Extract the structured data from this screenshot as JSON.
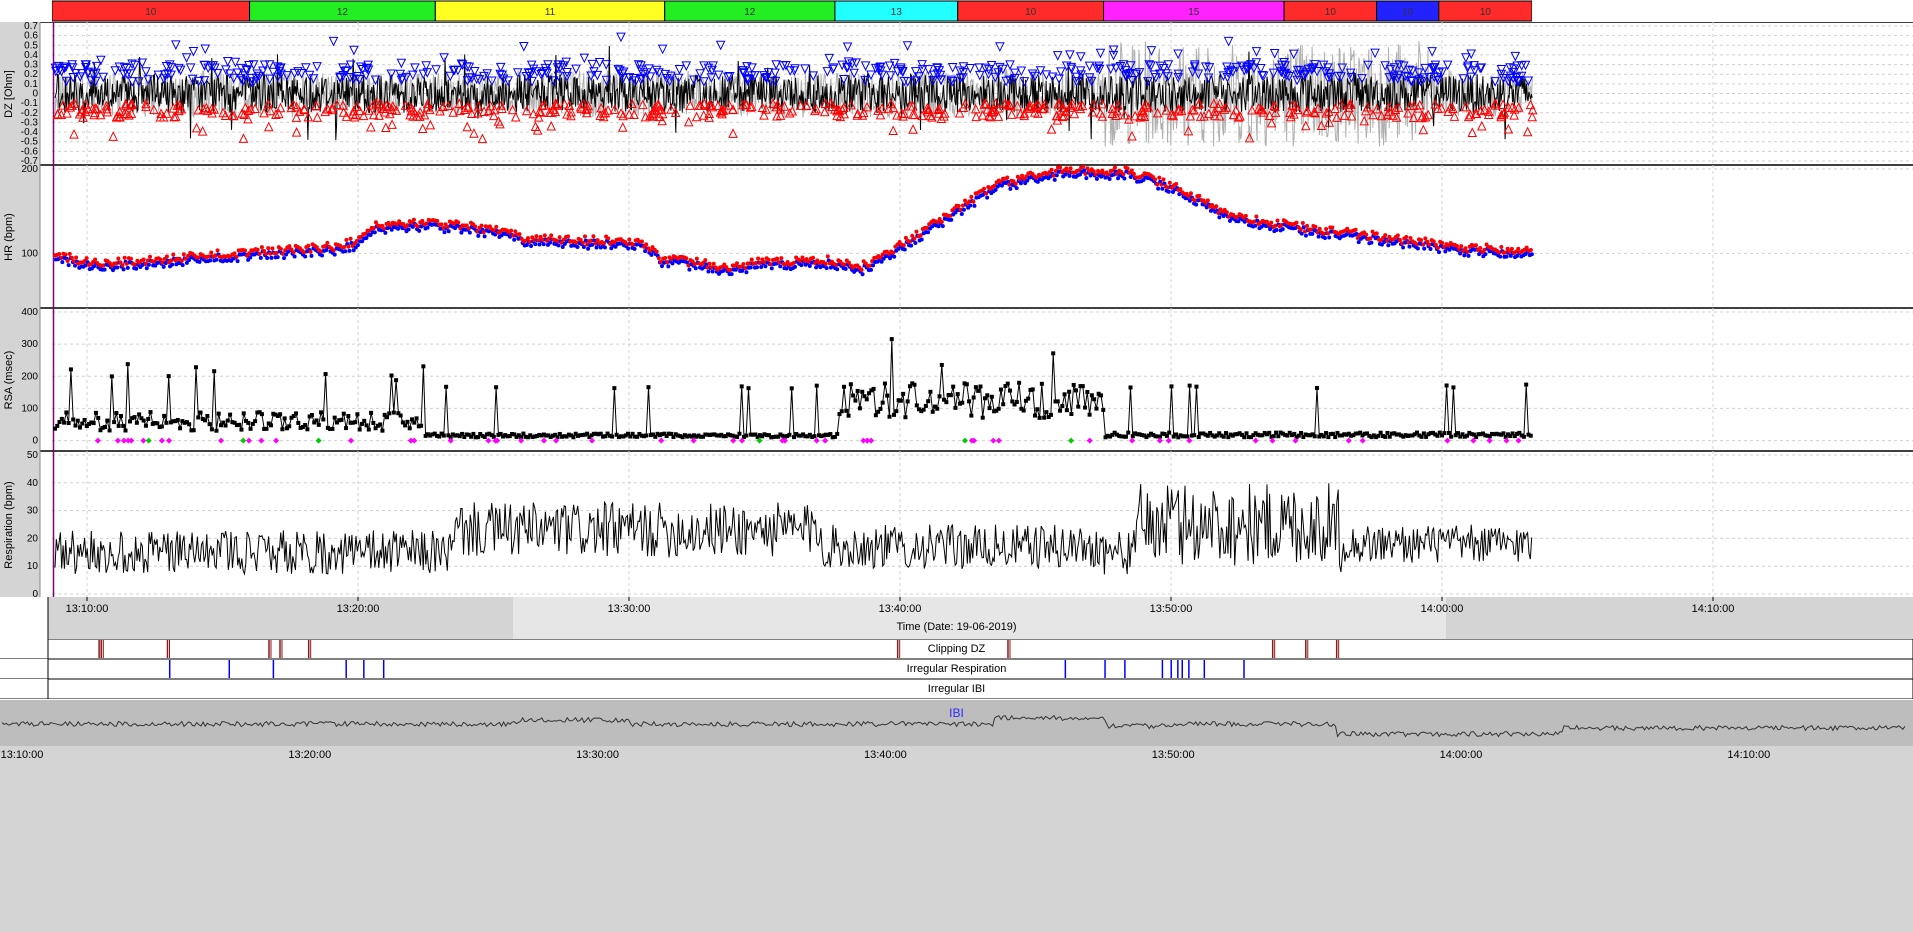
{
  "segments_bar": {
    "segments": [
      {
        "label": "10",
        "color": "#ff2a2a",
        "start": 0,
        "end": 0.1335
      },
      {
        "label": "12",
        "color": "#22ee22",
        "start": 0.1335,
        "end": 0.259
      },
      {
        "label": "11",
        "color": "#ffff22",
        "start": 0.259,
        "end": 0.414
      },
      {
        "label": "12",
        "color": "#22ee22",
        "start": 0.414,
        "end": 0.529
      },
      {
        "label": "13",
        "color": "#22ffff",
        "start": 0.529,
        "end": 0.612
      },
      {
        "label": "10",
        "color": "#ff2a2a",
        "start": 0.612,
        "end": 0.7105
      },
      {
        "label": "15",
        "color": "#ff22ff",
        "start": 0.7105,
        "end": 0.8325
      },
      {
        "label": "10",
        "color": "#ff2a2a",
        "start": 0.8325,
        "end": 0.895
      },
      {
        "label": "10",
        "color": "#2222ff",
        "start": 0.895,
        "end": 0.937
      },
      {
        "label": "10",
        "color": "#ff2a2a",
        "start": 0.937,
        "end": 1.0
      }
    ]
  },
  "chart_data": [
    {
      "name": "DZ",
      "type": "line",
      "ylabel": "DZ [Ohm]",
      "ylim": [
        -0.7,
        0.7
      ],
      "yticks": [
        "0.7",
        "0.6",
        "0.5",
        "0.4",
        "0.3",
        "0.2",
        "0.1",
        "0",
        "-0.1",
        "-0.2",
        "-0.3",
        "-0.4",
        "-0.5",
        "-0.6",
        "-0.7"
      ],
      "series": [
        {
          "color": "#000000",
          "amplitude": 0.2
        },
        {
          "color": "#0000ff",
          "marker": "triangle-down",
          "level": 0.2
        },
        {
          "color": "#ff0000",
          "marker": "triangle-up",
          "level": -0.2
        }
      ]
    },
    {
      "name": "HR",
      "type": "scatter",
      "ylabel": "HR (bpm)",
      "ylim": [
        40,
        200
      ],
      "yticks": [
        "200",
        "100"
      ],
      "trend": [
        [
          0,
          100
        ],
        [
          1.5,
          88
        ],
        [
          5,
          88
        ],
        [
          9,
          96
        ],
        [
          17,
          107
        ],
        [
          18,
          113
        ],
        [
          19,
          130
        ],
        [
          22,
          135
        ],
        [
          27,
          125
        ],
        [
          28,
          115
        ],
        [
          35,
          112
        ],
        [
          36,
          93
        ],
        [
          40,
          82
        ],
        [
          42,
          88
        ],
        [
          46,
          90
        ],
        [
          48,
          83
        ],
        [
          49,
          92
        ],
        [
          52,
          130
        ],
        [
          56,
          180
        ],
        [
          60,
          197
        ],
        [
          64,
          195
        ],
        [
          67,
          175
        ],
        [
          70,
          142
        ],
        [
          74,
          130
        ],
        [
          78,
          120
        ],
        [
          84,
          105
        ],
        [
          88,
          102
        ]
      ],
      "series": [
        {
          "color": "#ff0000",
          "marker": "circle"
        },
        {
          "color": "#0000ff",
          "marker": "circle"
        }
      ]
    },
    {
      "name": "RSA",
      "type": "line",
      "ylabel": "RSA (msec)",
      "ylim": [
        -20,
        400
      ],
      "yticks": [
        "400",
        "300",
        "200",
        "100",
        "0"
      ],
      "series": [
        {
          "color": "#000000",
          "marker": "square"
        },
        {
          "color": "#ff00ff",
          "marker": "diamond"
        },
        {
          "color": "#00cc00",
          "marker": "diamond"
        }
      ]
    },
    {
      "name": "Respiration",
      "type": "line",
      "ylabel": "Respiration (bpm)",
      "ylim": [
        0,
        50
      ],
      "yticks": [
        "50",
        "40",
        "30",
        "20",
        "10",
        "0"
      ],
      "series": [
        {
          "color": "#000000"
        }
      ]
    }
  ],
  "time_axis": {
    "title": "Time (Date: 19-06-2019)",
    "ticks": [
      "13:10:00",
      "13:20:00",
      "13:30:00",
      "13:40:00",
      "13:50:00",
      "14:00:00",
      "14:10:00"
    ],
    "shaded_color": "#d4d4d4"
  },
  "event_rows": [
    {
      "label": "Clipping DZ",
      "color": "#8b1a1a",
      "events": [
        2,
        2.1,
        5.1,
        9.7,
        10.2,
        11.5,
        38.2,
        43.2,
        55.2,
        56.7,
        58.1
      ]
    },
    {
      "label": "Irregular Respiration",
      "color": "#0000ff",
      "events": [
        5.2,
        7.9,
        9.9,
        13.2,
        14,
        14.9,
        45.8,
        47.6,
        48.5,
        50.2,
        50.6,
        50.9,
        51.1,
        51.4,
        52.1,
        53.9
      ]
    },
    {
      "label": "Irregular IBI",
      "color": "#0000ff",
      "events": []
    }
  ],
  "overview": {
    "title": "IBI",
    "ticks": [
      "13:10:00",
      "13:20:00",
      "13:30:00",
      "13:40:00",
      "13:50:00",
      "14:00:00",
      "14:10:00"
    ]
  }
}
